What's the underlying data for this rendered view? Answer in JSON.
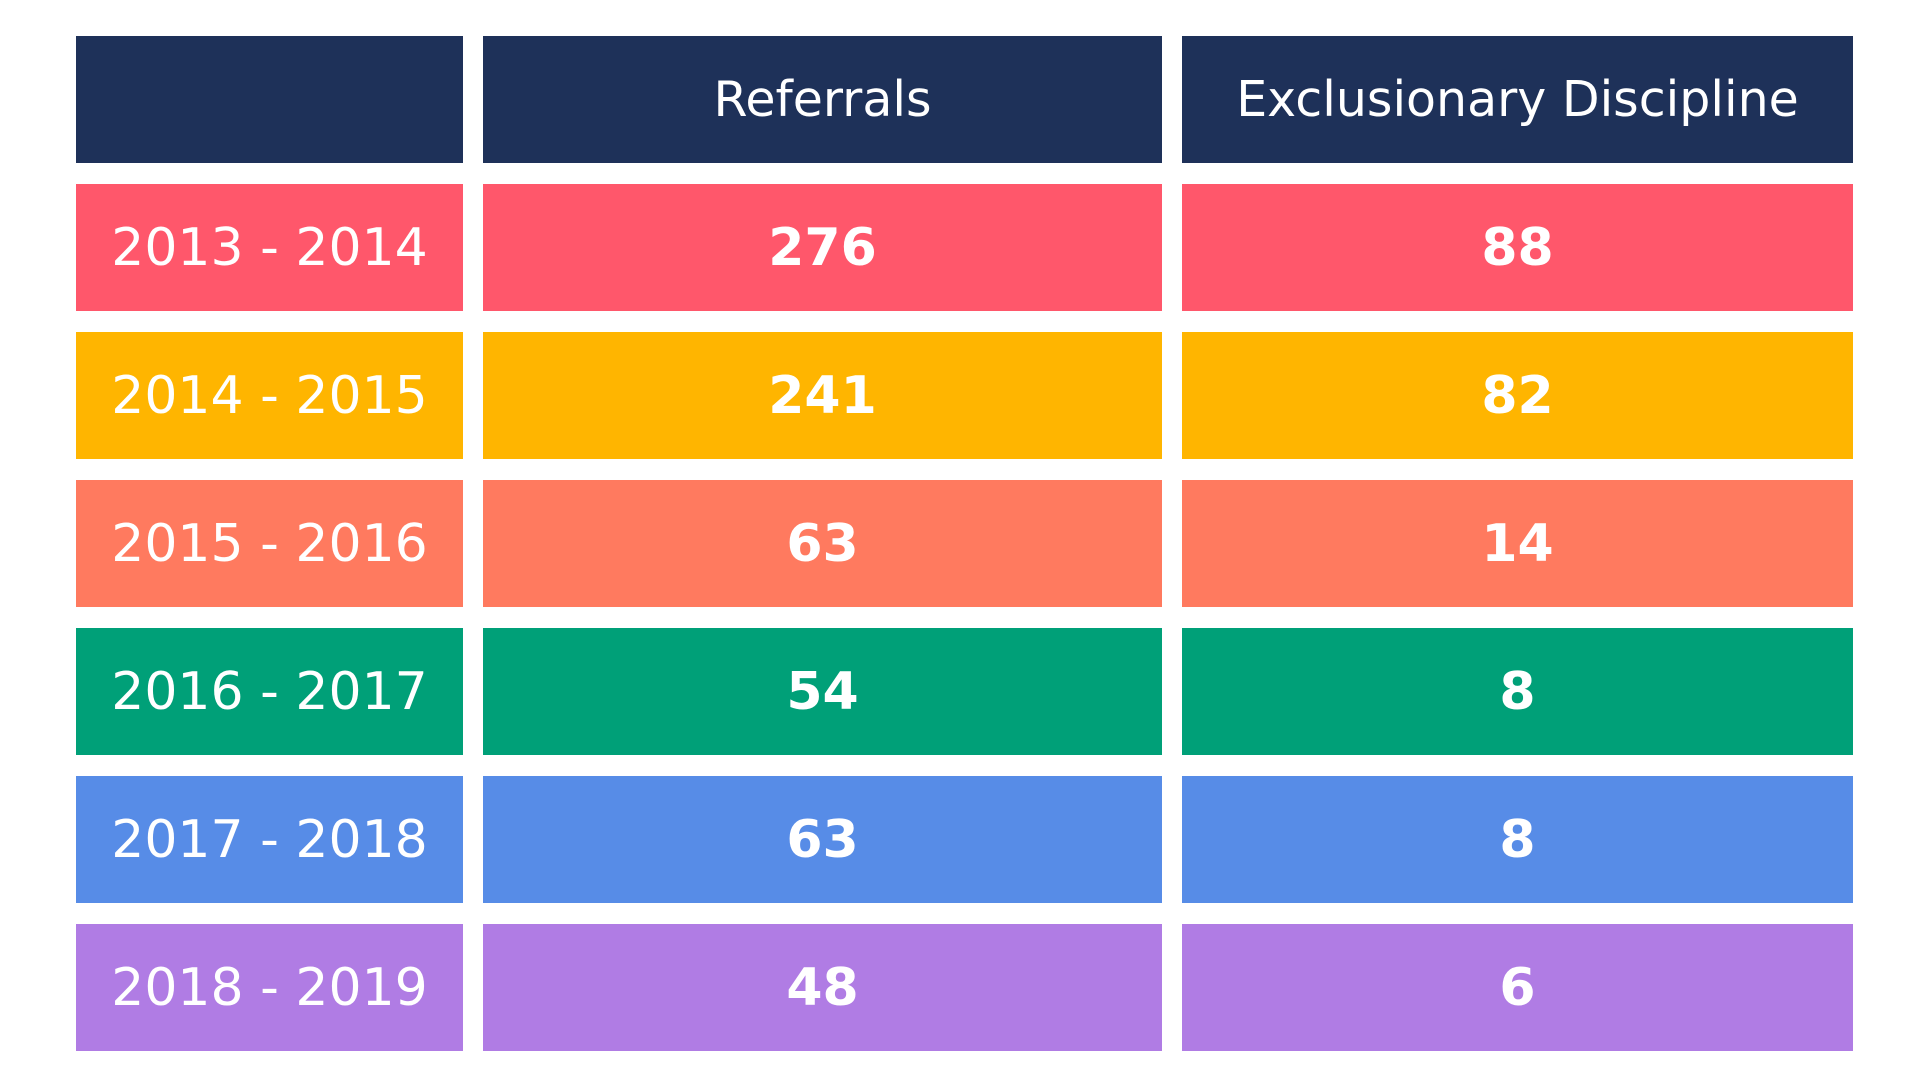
{
  "chart_data": {
    "type": "table",
    "columns": [
      "",
      "Referrals",
      "Exclusionary Discipline"
    ],
    "header_color": "#1e3159",
    "rows": [
      {
        "label": "2013 - 2014",
        "referrals": "276",
        "exclusionary": "88",
        "color": "#ff576b"
      },
      {
        "label": "2014 - 2015",
        "referrals": "241",
        "exclusionary": "82",
        "color": "#ffb500"
      },
      {
        "label": "2015 - 2016",
        "referrals": "63",
        "exclusionary": "14",
        "color": "#ff7a5f"
      },
      {
        "label": "2016 - 2017",
        "referrals": "54",
        "exclusionary": "8",
        "color": "#00a078"
      },
      {
        "label": "2017 - 2018",
        "referrals": "63",
        "exclusionary": "8",
        "color": "#578ce7"
      },
      {
        "label": "2018 - 2019",
        "referrals": "48",
        "exclusionary": "6",
        "color": "#b07ce4"
      }
    ]
  }
}
